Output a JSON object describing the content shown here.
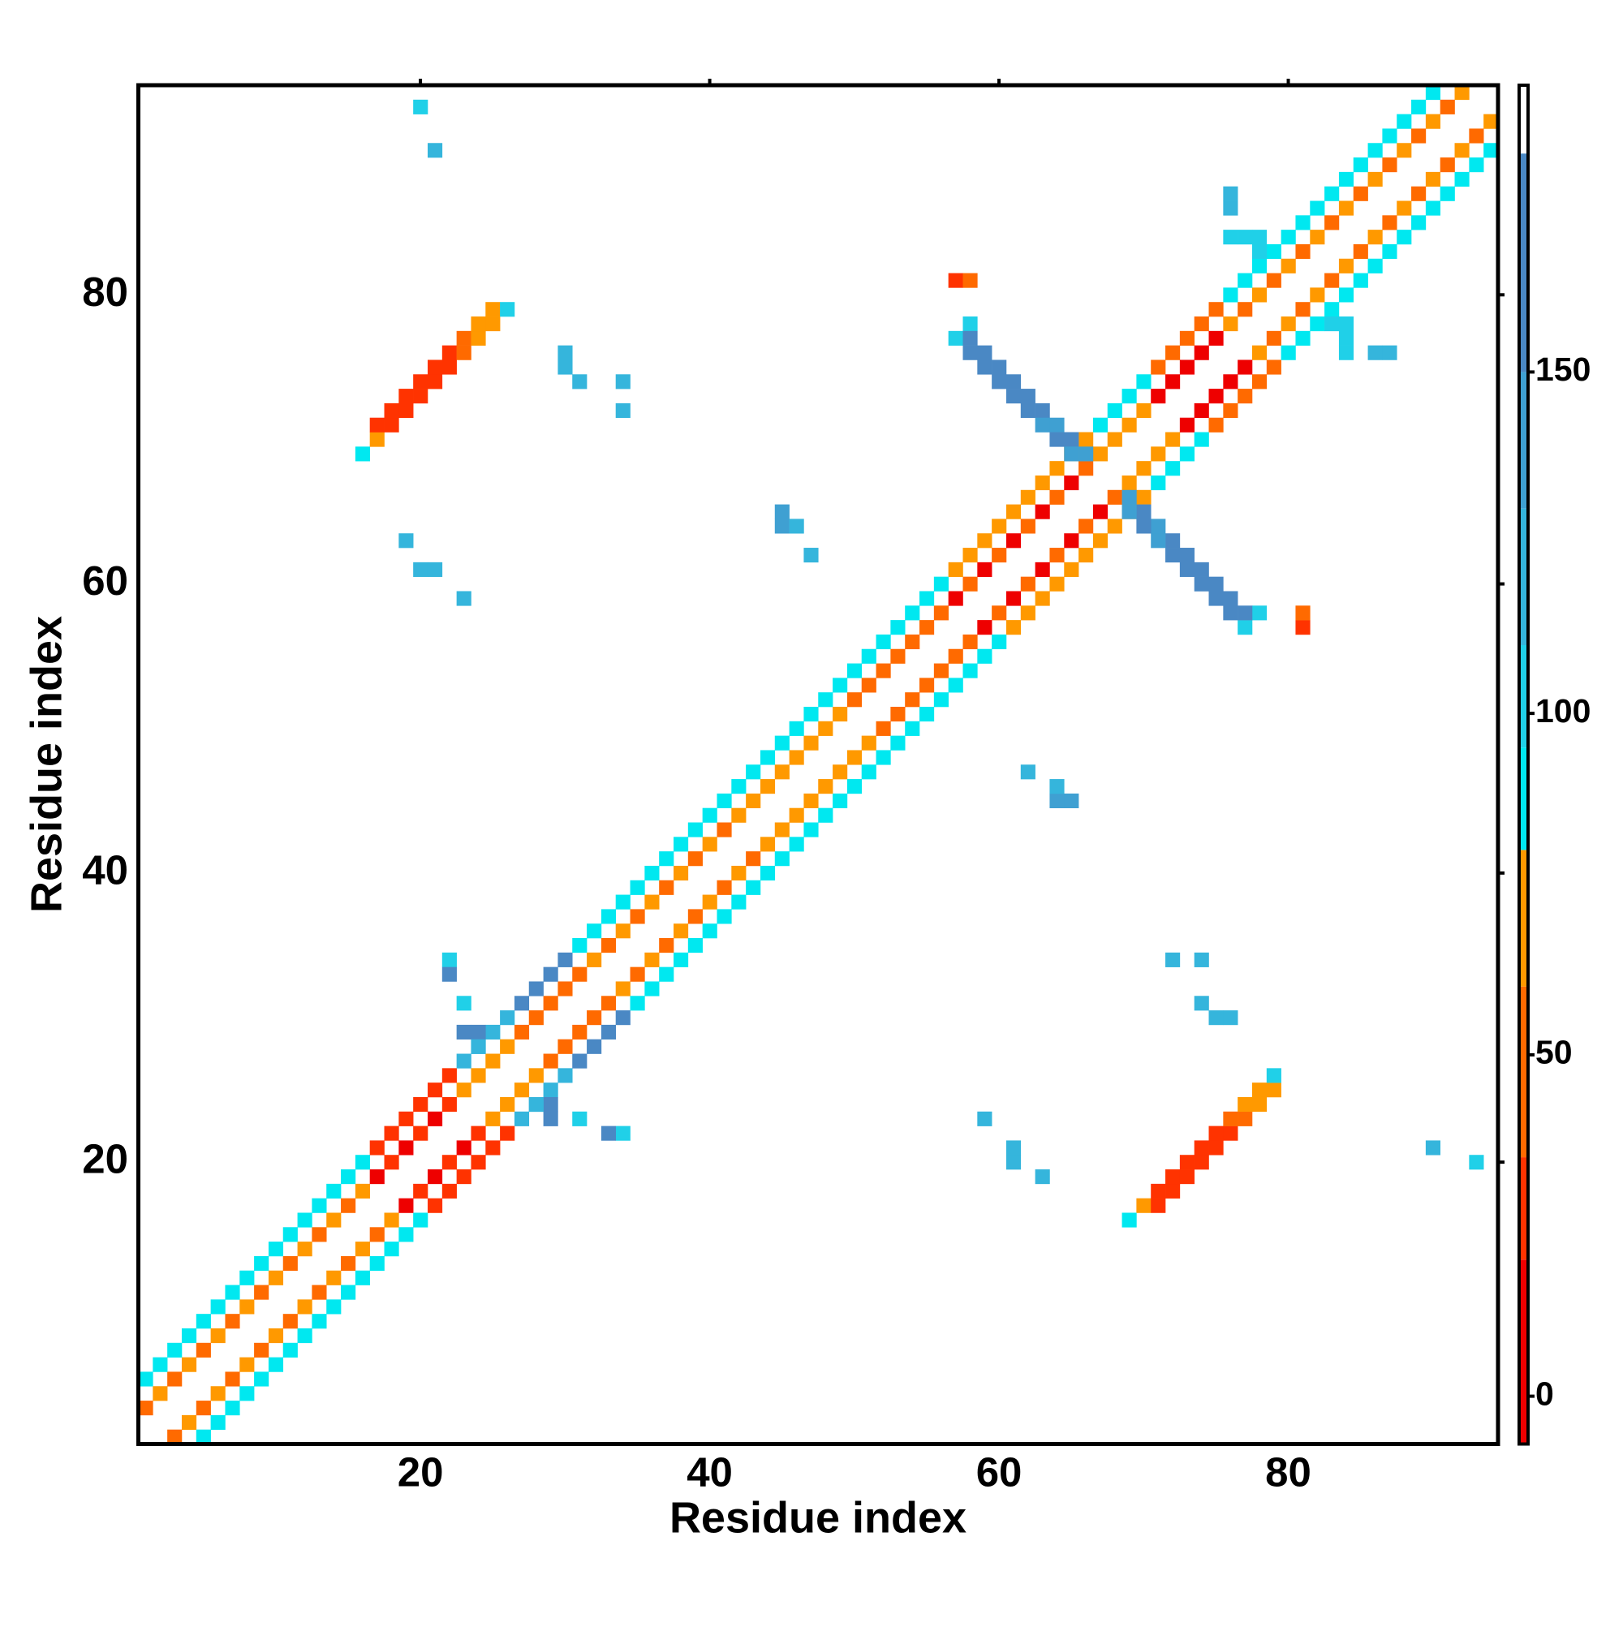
{
  "chart_data": {
    "type": "heatmap",
    "x_label": "Residue index",
    "y_label": "Residue index",
    "xlim": [
      0.5,
      94.5
    ],
    "ylim": [
      0.5,
      94.5
    ],
    "xticks": [
      20,
      40,
      60,
      80
    ],
    "yticks": [
      20,
      40,
      60,
      80
    ],
    "symmetric": true,
    "x": [
      1,
      2,
      3,
      4,
      5,
      6,
      7,
      8,
      9,
      10,
      11,
      12,
      13,
      14,
      15,
      16,
      17,
      18,
      19,
      20,
      21,
      22,
      23,
      24,
      25,
      26,
      27,
      28,
      29,
      30,
      31,
      32,
      33,
      34,
      35,
      36,
      37,
      38,
      39,
      40,
      41,
      42,
      43,
      44,
      45,
      46,
      47,
      48,
      49,
      50,
      51,
      52,
      53,
      54,
      55,
      56,
      57,
      58,
      59,
      60,
      61,
      62,
      63,
      64,
      65,
      66,
      67,
      68,
      69,
      70,
      71,
      72,
      73,
      74,
      75,
      76,
      77,
      78,
      79,
      80,
      81,
      82,
      83,
      84,
      85,
      86,
      87,
      88,
      89,
      90,
      91,
      92,
      1,
      2,
      3,
      4,
      5,
      6,
      7,
      8,
      9,
      10,
      11,
      12,
      13,
      14,
      15,
      16,
      17,
      18,
      19,
      20,
      21,
      22,
      23,
      24,
      25,
      26,
      27,
      28,
      29,
      30,
      31,
      32,
      33,
      34,
      35,
      36,
      37,
      38,
      39,
      40,
      41,
      42,
      43,
      44,
      45,
      46,
      47,
      48,
      49,
      50,
      51,
      52,
      53,
      54,
      55,
      56,
      57,
      58,
      59,
      60,
      61,
      62,
      63,
      64,
      65,
      66,
      67,
      68,
      69,
      70,
      71,
      72,
      73,
      74,
      75,
      76,
      77,
      78,
      79,
      80,
      81,
      82,
      83,
      84,
      85,
      86,
      87,
      88,
      89,
      90,
      57,
      58,
      58,
      58,
      59,
      59,
      60,
      60,
      61,
      61,
      62,
      62,
      63,
      63,
      64,
      64,
      65,
      65,
      66,
      17,
      17,
      18,
      18,
      19,
      19,
      20,
      20,
      21,
      21,
      22,
      22,
      23,
      23,
      24,
      24,
      25,
      25,
      26,
      16,
      20,
      21,
      30,
      30,
      31,
      34,
      34,
      19,
      20,
      21,
      23,
      45,
      45,
      46,
      47,
      57,
      58,
      76,
      77,
      78,
      76,
      78,
      76,
      22,
      22,
      23,
      24,
      23,
      24
    ],
    "y": [
      3,
      4,
      5,
      6,
      7,
      8,
      9,
      10,
      11,
      12,
      13,
      14,
      15,
      16,
      17,
      18,
      19,
      20,
      21,
      22,
      23,
      24,
      25,
      26,
      27,
      28,
      29,
      30,
      31,
      32,
      33,
      34,
      35,
      36,
      37,
      38,
      39,
      40,
      41,
      42,
      43,
      44,
      45,
      46,
      47,
      48,
      49,
      50,
      51,
      52,
      53,
      54,
      55,
      56,
      57,
      58,
      59,
      60,
      61,
      62,
      63,
      64,
      65,
      66,
      67,
      68,
      69,
      70,
      71,
      72,
      73,
      74,
      75,
      76,
      77,
      78,
      79,
      80,
      81,
      82,
      83,
      84,
      85,
      86,
      87,
      88,
      89,
      90,
      91,
      92,
      93,
      94,
      5,
      6,
      7,
      8,
      9,
      10,
      11,
      12,
      13,
      14,
      15,
      16,
      17,
      18,
      19,
      20,
      21,
      22,
      23,
      24,
      25,
      26,
      27,
      28,
      29,
      30,
      31,
      32,
      33,
      34,
      35,
      36,
      37,
      38,
      39,
      40,
      41,
      42,
      43,
      44,
      45,
      46,
      47,
      48,
      49,
      50,
      51,
      52,
      53,
      54,
      55,
      56,
      57,
      58,
      59,
      60,
      61,
      62,
      63,
      64,
      65,
      66,
      67,
      68,
      69,
      70,
      71,
      72,
      73,
      74,
      75,
      76,
      77,
      78,
      79,
      80,
      81,
      82,
      83,
      84,
      85,
      86,
      87,
      88,
      89,
      90,
      91,
      92,
      93,
      94,
      77,
      78,
      77,
      76,
      76,
      75,
      75,
      74,
      74,
      73,
      73,
      72,
      72,
      71,
      71,
      70,
      70,
      69,
      69,
      70,
      71,
      71,
      72,
      72,
      73,
      73,
      74,
      74,
      75,
      75,
      76,
      76,
      77,
      77,
      78,
      78,
      79,
      79,
      69,
      93,
      90,
      76,
      75,
      74,
      74,
      72,
      63,
      61,
      61,
      59,
      65,
      64,
      64,
      62,
      81,
      81,
      87,
      84,
      84,
      84,
      83,
      86,
      34,
      33,
      29,
      29,
      31,
      28
    ],
    "values": [
      45,
      70,
      45,
      70,
      45,
      70,
      45,
      70,
      45,
      70,
      45,
      70,
      45,
      70,
      45,
      70,
      0,
      30,
      0,
      30,
      0,
      30,
      70,
      70,
      70,
      70,
      45,
      45,
      45,
      45,
      45,
      70,
      45,
      70,
      45,
      70,
      45,
      70,
      45,
      70,
      45,
      70,
      70,
      70,
      70,
      70,
      70,
      70,
      70,
      45,
      45,
      45,
      45,
      45,
      45,
      45,
      0,
      45,
      0,
      45,
      0,
      45,
      0,
      45,
      0,
      45,
      70,
      70,
      70,
      70,
      0,
      0,
      0,
      0,
      0,
      70,
      45,
      70,
      45,
      70,
      45,
      70,
      45,
      70,
      45,
      70,
      45,
      70,
      45,
      70,
      45,
      70,
      90,
      90,
      90,
      90,
      90,
      90,
      90,
      90,
      90,
      90,
      90,
      90,
      90,
      90,
      90,
      90,
      30,
      30,
      30,
      30,
      30,
      30,
      120,
      120,
      120,
      120,
      160,
      160,
      160,
      160,
      90,
      90,
      90,
      90,
      90,
      90,
      90,
      90,
      90,
      90,
      90,
      90,
      90,
      90,
      90,
      90,
      90,
      90,
      90,
      90,
      90,
      90,
      90,
      90,
      90,
      90,
      70,
      70,
      70,
      70,
      70,
      70,
      70,
      70,
      70,
      70,
      90,
      90,
      90,
      90,
      45,
      45,
      45,
      45,
      45,
      90,
      90,
      90,
      90,
      90,
      90,
      90,
      90,
      90,
      90,
      90,
      90,
      90,
      90,
      90,
      100,
      100,
      160,
      160,
      160,
      160,
      160,
      160,
      160,
      160,
      160,
      160,
      160,
      140,
      140,
      160,
      160,
      140,
      140,
      70,
      30,
      30,
      30,
      30,
      30,
      30,
      30,
      30,
      30,
      30,
      30,
      45,
      45,
      70,
      70,
      70,
      70,
      100,
      90,
      100,
      120,
      120,
      120,
      120,
      120,
      120,
      120,
      120,
      120,
      120,
      140,
      140,
      120,
      120,
      30,
      45,
      120,
      100,
      100,
      100,
      100,
      120,
      100,
      160,
      160,
      160,
      100,
      120
    ],
    "colorbar": {
      "ylim": [
        -7,
        192
      ],
      "yticks": [
        0,
        50,
        100,
        150
      ],
      "bands": [
        {
          "from": -7,
          "to": 20,
          "color": "#ee0000"
        },
        {
          "from": 20,
          "to": 35,
          "color": "#ff3300"
        },
        {
          "from": 35,
          "to": 60,
          "color": "#ff6a00"
        },
        {
          "from": 60,
          "to": 80,
          "color": "#ff9900"
        },
        {
          "from": 80,
          "to": 95,
          "color": "#00e8f0"
        },
        {
          "from": 95,
          "to": 110,
          "color": "#20d0e8"
        },
        {
          "from": 110,
          "to": 130,
          "color": "#35b5dc"
        },
        {
          "from": 130,
          "to": 150,
          "color": "#3fa0d2"
        },
        {
          "from": 150,
          "to": 182,
          "color": "#4a88c4"
        },
        {
          "from": 182,
          "to": 192,
          "color": "#ffffff"
        }
      ]
    }
  }
}
